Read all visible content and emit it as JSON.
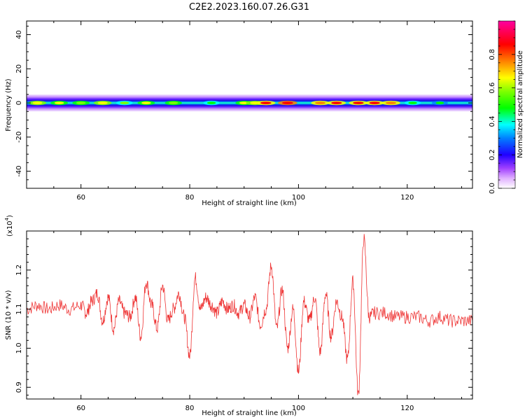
{
  "title": "C2E2.2023.160.07.26.G31",
  "chart_data": [
    {
      "type": "heatmap",
      "xlabel": "Height of straight line (km)",
      "ylabel": "Frequency (Hz)",
      "xlim": [
        50,
        132
      ],
      "ylim": [
        -50,
        48
      ],
      "xticks": [
        60,
        80,
        100,
        120
      ],
      "yticks": [
        -40,
        -20,
        0,
        20,
        40
      ],
      "band_center_hz": 0,
      "band_halfwidth_hz": 5,
      "hotspots": [
        {
          "x": 52,
          "a": 0.75
        },
        {
          "x": 56,
          "a": 0.7
        },
        {
          "x": 60,
          "a": 0.68
        },
        {
          "x": 64,
          "a": 0.78
        },
        {
          "x": 68,
          "a": 0.6
        },
        {
          "x": 72,
          "a": 0.7
        },
        {
          "x": 77,
          "a": 0.65
        },
        {
          "x": 84,
          "a": 0.55
        },
        {
          "x": 90,
          "a": 0.7
        },
        {
          "x": 92,
          "a": 0.78
        },
        {
          "x": 94,
          "a": 0.95
        },
        {
          "x": 98,
          "a": 0.98
        },
        {
          "x": 104,
          "a": 0.85
        },
        {
          "x": 107,
          "a": 0.9
        },
        {
          "x": 111,
          "a": 0.92
        },
        {
          "x": 114,
          "a": 0.9
        },
        {
          "x": 117,
          "a": 0.88
        },
        {
          "x": 121,
          "a": 0.55
        },
        {
          "x": 126,
          "a": 0.5
        }
      ],
      "colorbar": {
        "label": "Normalized spectral amplitude",
        "range": [
          0.0,
          1.0
        ],
        "ticks": [
          0.0,
          0.2,
          0.4,
          0.6,
          0.8
        ]
      }
    },
    {
      "type": "line",
      "xlabel": "Height of straight line (km)",
      "ylabel": "SNR (10 * v/v)",
      "multiplier_label": "(x10",
      "multiplier_exponent": "4",
      "xlim": [
        50,
        132
      ],
      "ylim": [
        0.87,
        1.3
      ],
      "xticks": [
        60,
        80,
        100,
        120
      ],
      "yticks": [
        0.9,
        1.0,
        1.1,
        1.2
      ],
      "color": "#ee3333",
      "x": [
        50,
        52,
        54,
        56,
        58,
        60,
        61,
        62,
        63,
        64,
        65,
        66,
        67,
        68,
        69,
        70,
        71,
        72,
        73,
        74,
        75,
        76,
        77,
        78,
        79,
        80,
        81,
        82,
        83,
        84,
        85,
        86,
        87,
        88,
        89,
        90,
        91,
        92,
        93,
        94,
        95,
        96,
        97,
        98,
        99,
        100,
        101,
        102,
        103,
        104,
        105,
        106,
        107,
        108,
        109,
        110,
        111,
        112,
        113,
        114,
        116,
        118,
        120,
        122,
        124,
        126,
        128,
        130,
        132
      ],
      "y": [
        1.1,
        1.11,
        1.1,
        1.11,
        1.1,
        1.11,
        1.09,
        1.12,
        1.14,
        1.07,
        1.13,
        1.05,
        1.12,
        1.09,
        1.08,
        1.13,
        1.03,
        1.17,
        1.11,
        1.05,
        1.16,
        1.07,
        1.1,
        1.14,
        1.08,
        0.98,
        1.18,
        1.1,
        1.13,
        1.11,
        1.09,
        1.12,
        1.1,
        1.11,
        1.09,
        1.11,
        1.08,
        1.13,
        1.06,
        1.1,
        1.21,
        1.05,
        1.15,
        1.0,
        1.1,
        0.94,
        1.12,
        1.07,
        1.13,
        0.99,
        1.14,
        1.03,
        1.12,
        1.08,
        0.97,
        1.17,
        0.88,
        1.28,
        1.08,
        1.09,
        1.09,
        1.08,
        1.08,
        1.08,
        1.07,
        1.08,
        1.07,
        1.07,
        1.07
      ]
    }
  ]
}
